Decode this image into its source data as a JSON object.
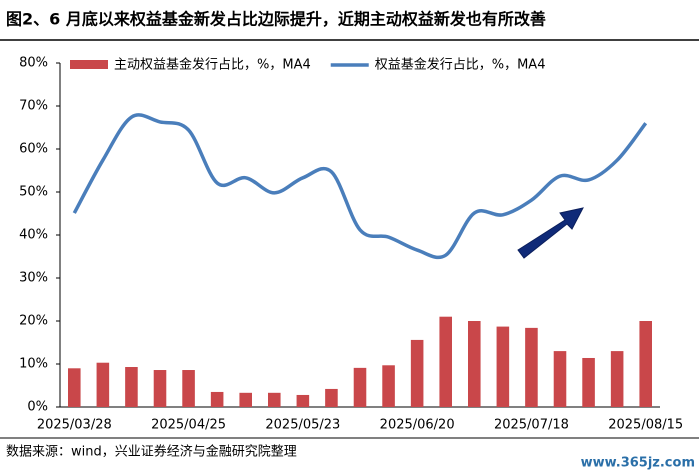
{
  "header": {
    "title": "图2、6 月底以来权益基金新发占比边际提升，近期主动权益新发也有所改善"
  },
  "chart_data": {
    "type": "bar-line",
    "categories": [
      "2025/03/28",
      null,
      null,
      null,
      "2025/04/25",
      null,
      null,
      null,
      "2025/05/23",
      null,
      null,
      null,
      "2025/06/20",
      null,
      null,
      null,
      "2025/07/18",
      null,
      null,
      null,
      "2025/08/15"
    ],
    "series": [
      {
        "name": "主动权益基金发行占比，%，MA4",
        "type": "bar",
        "color": "#c9474a",
        "values": [
          9.0,
          10.3,
          9.3,
          8.6,
          8.6,
          3.5,
          3.3,
          3.3,
          2.8,
          4.2,
          9.1,
          9.7,
          15.6,
          21.0,
          20.0,
          18.7,
          18.4,
          13.0,
          11.4,
          13.0,
          20.0
        ]
      },
      {
        "name": "权益基金发行占比，%，MA4",
        "type": "line",
        "color": "#4a7ebb",
        "values": [
          45.1,
          57.4,
          67.4,
          66.3,
          64.4,
          52.1,
          53.3,
          49.8,
          53.3,
          54.7,
          41.2,
          39.5,
          36.5,
          35.3,
          45.1,
          44.7,
          48.1,
          53.7,
          52.8,
          57.4,
          66.0
        ]
      }
    ],
    "ylim": [
      0,
      80
    ],
    "yticks": [
      {
        "value": 0,
        "label": "0%"
      },
      {
        "value": 10,
        "label": "10%"
      },
      {
        "value": 20,
        "label": "20%"
      },
      {
        "value": 30,
        "label": "30%"
      },
      {
        "value": 40,
        "label": "40%"
      },
      {
        "value": 50,
        "label": "50%"
      },
      {
        "value": 60,
        "label": "60%"
      },
      {
        "value": 70,
        "label": "70%"
      },
      {
        "value": 80,
        "label": "80%"
      }
    ],
    "grid": false
  },
  "footer": {
    "source": "数据来源：wind，兴业证券经济与金融研究院整理",
    "watermark": "www.365jz.com"
  }
}
